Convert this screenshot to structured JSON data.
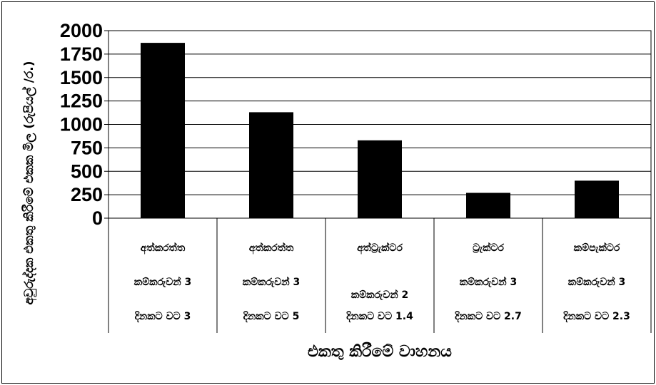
{
  "chart_data": {
    "type": "bar",
    "ylabel": "අවුරුද්දක එකතු කිරීමේ එකක මිල (රුපියල් /ර.)",
    "xlabel": "එකතු කිරීමේ වාහනය",
    "ylim": [
      0,
      2000
    ],
    "yticks": [
      "0",
      "250",
      "500",
      "750",
      "1000",
      "1250",
      "1500",
      "1750",
      "2000"
    ],
    "grid": true,
    "bar_color": "#000000",
    "categories": [
      {
        "name": "අත්කරත්ත",
        "workers": "කම්කරුවන් 3",
        "trips": "දිනකට වට 3"
      },
      {
        "name": "අත්කරත්ත",
        "workers": "කම්කරුවන් 3",
        "trips": "දිනකට වට 5"
      },
      {
        "name": "අත්ට්‍රැක්ටර",
        "workers": "කම්කරුවන් 2",
        "trips": "දිනකට වට 1.4"
      },
      {
        "name": "ට්‍රැක්ටර",
        "workers": "කම්කරුවන් 3",
        "trips": "දිනකට වට 2.7"
      },
      {
        "name": "කම්පැක්ටර",
        "workers": "කම්කරුවන් 3",
        "trips": "දිනකට වට 2.3"
      }
    ],
    "values": [
      1870,
      1130,
      830,
      270,
      400
    ]
  }
}
